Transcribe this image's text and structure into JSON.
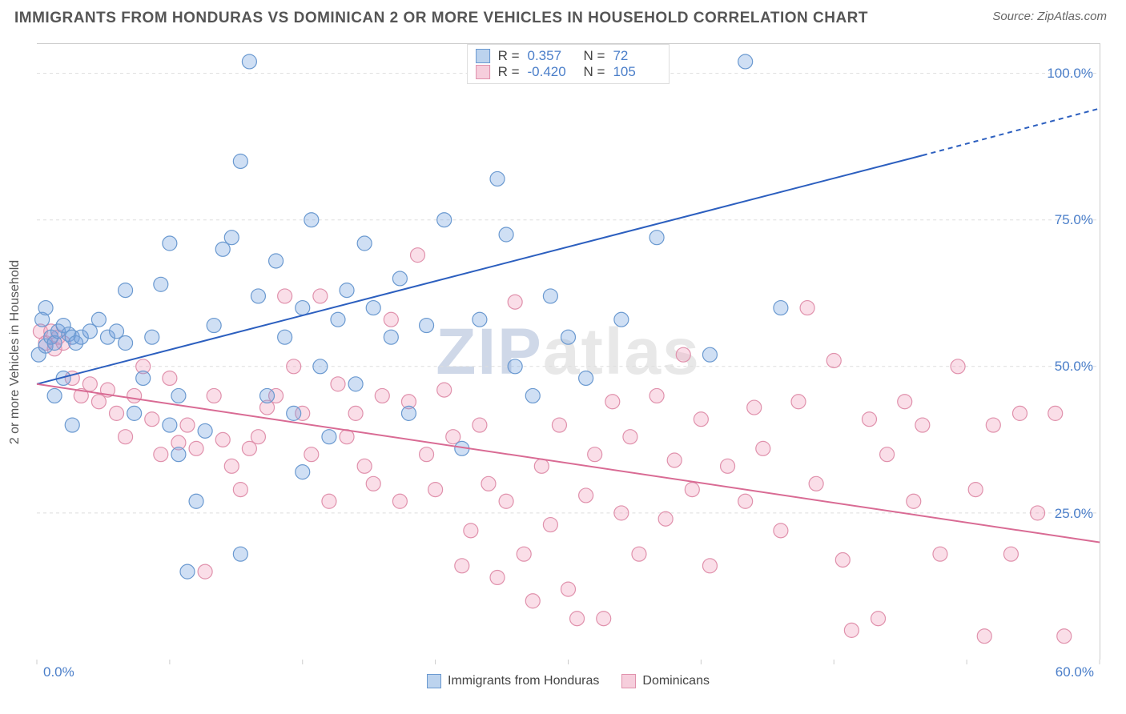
{
  "header": {
    "title": "IMMIGRANTS FROM HONDURAS VS DOMINICAN 2 OR MORE VEHICLES IN HOUSEHOLD CORRELATION CHART",
    "source_label": "Source: ",
    "source_value": "ZipAtlas.com"
  },
  "watermark": {
    "left": "ZIP",
    "right": "atlas"
  },
  "axes": {
    "y_title": "2 or more Vehicles in Household",
    "x_min_label": "0.0%",
    "x_max_label": "60.0%",
    "xlim": [
      0,
      60
    ],
    "ylim": [
      0,
      105
    ],
    "y_ticks": [
      25.0,
      50.0,
      75.0,
      100.0
    ],
    "y_tick_labels": [
      "25.0%",
      "50.0%",
      "75.0%",
      "100.0%"
    ],
    "x_tick_positions": [
      0,
      7.5,
      15,
      22.5,
      30,
      37.5,
      45,
      52.5,
      60
    ],
    "grid_color": "#dddddd",
    "label_color": "#4a7ec9",
    "axis_title_color": "#555555",
    "label_fontsize": 17
  },
  "series": {
    "a": {
      "name": "Immigrants from Honduras",
      "color_fill": "rgba(117,163,224,0.35)",
      "color_stroke": "#6a99d0",
      "swatch_fill": "#bcd3ee",
      "swatch_border": "#6a99d0",
      "marker": "circle",
      "marker_radius": 9,
      "R_label": "R =",
      "R_value": "0.357",
      "N_label": "N =",
      "N_value": "72",
      "regression": {
        "x1": 0,
        "y1": 47,
        "x2": 50,
        "y2": 86,
        "dashed_to_x": 60,
        "dashed_to_y": 94,
        "stroke": "#2c5fbf",
        "width": 2
      },
      "points": [
        [
          0.1,
          52
        ],
        [
          0.3,
          58
        ],
        [
          0.5,
          53.5
        ],
        [
          0.8,
          55
        ],
        [
          1,
          54
        ],
        [
          1.2,
          56
        ],
        [
          1.5,
          57
        ],
        [
          1.8,
          55.5
        ],
        [
          2,
          55
        ],
        [
          2.2,
          54
        ],
        [
          0.5,
          60
        ],
        [
          1,
          45
        ],
        [
          1.5,
          48
        ],
        [
          2,
          40
        ],
        [
          2.5,
          55
        ],
        [
          3,
          56
        ],
        [
          3.5,
          58
        ],
        [
          4,
          55
        ],
        [
          4.5,
          56
        ],
        [
          5,
          54
        ],
        [
          5,
          63
        ],
        [
          5.5,
          42
        ],
        [
          6,
          48
        ],
        [
          6.5,
          55
        ],
        [
          7,
          64
        ],
        [
          7.5,
          71
        ],
        [
          7.5,
          40
        ],
        [
          8,
          45
        ],
        [
          8,
          35
        ],
        [
          8.5,
          15
        ],
        [
          9,
          27
        ],
        [
          9.5,
          39
        ],
        [
          10,
          57
        ],
        [
          10.5,
          70
        ],
        [
          11,
          72
        ],
        [
          11.5,
          85
        ],
        [
          11.5,
          18
        ],
        [
          12,
          102
        ],
        [
          12.5,
          62
        ],
        [
          13,
          45
        ],
        [
          13.5,
          68
        ],
        [
          14,
          55
        ],
        [
          14.5,
          42
        ],
        [
          15,
          60
        ],
        [
          15,
          32
        ],
        [
          15.5,
          75
        ],
        [
          16,
          50
        ],
        [
          16.5,
          38
        ],
        [
          17,
          58
        ],
        [
          17.5,
          63
        ],
        [
          18,
          47
        ],
        [
          18.5,
          71
        ],
        [
          19,
          60
        ],
        [
          20,
          55
        ],
        [
          20.5,
          65
        ],
        [
          21,
          42
        ],
        [
          22,
          57
        ],
        [
          23,
          75
        ],
        [
          24,
          36
        ],
        [
          25,
          58
        ],
        [
          26,
          82
        ],
        [
          26.5,
          72.5
        ],
        [
          27,
          50
        ],
        [
          28,
          45
        ],
        [
          29,
          62
        ],
        [
          30,
          55
        ],
        [
          31,
          48
        ],
        [
          33,
          58
        ],
        [
          35,
          72
        ],
        [
          38,
          52
        ],
        [
          40,
          102
        ],
        [
          42,
          60
        ]
      ]
    },
    "b": {
      "name": "Dominicans",
      "color_fill": "rgba(240,160,190,0.35)",
      "color_stroke": "#e091ac",
      "swatch_fill": "#f6cedc",
      "swatch_border": "#e091ac",
      "marker": "circle",
      "marker_radius": 9,
      "R_label": "R =",
      "R_value": "-0.420",
      "N_label": "N =",
      "N_value": "105",
      "regression": {
        "x1": 0,
        "y1": 47,
        "x2": 60,
        "y2": 20,
        "stroke": "#d96b94",
        "width": 2
      },
      "points": [
        [
          0.2,
          56
        ],
        [
          0.5,
          54
        ],
        [
          0.8,
          56
        ],
        [
          1,
          53
        ],
        [
          1.2,
          55
        ],
        [
          1.5,
          54
        ],
        [
          2,
          48
        ],
        [
          2.5,
          45
        ],
        [
          3,
          47
        ],
        [
          3.5,
          44
        ],
        [
          4,
          46
        ],
        [
          4.5,
          42
        ],
        [
          5,
          38
        ],
        [
          5.5,
          45
        ],
        [
          6,
          50
        ],
        [
          6.5,
          41
        ],
        [
          7,
          35
        ],
        [
          7.5,
          48
        ],
        [
          8,
          37
        ],
        [
          8.5,
          40
        ],
        [
          9,
          36
        ],
        [
          9.5,
          15
        ],
        [
          10,
          45
        ],
        [
          10.5,
          37.5
        ],
        [
          11,
          33
        ],
        [
          11.5,
          29
        ],
        [
          12,
          36
        ],
        [
          12.5,
          38
        ],
        [
          13,
          43
        ],
        [
          13.5,
          45
        ],
        [
          14,
          62
        ],
        [
          14.5,
          50
        ],
        [
          15,
          42
        ],
        [
          15.5,
          35
        ],
        [
          16,
          62
        ],
        [
          16.5,
          27
        ],
        [
          17,
          47
        ],
        [
          17.5,
          38
        ],
        [
          18,
          42
        ],
        [
          18.5,
          33
        ],
        [
          19,
          30
        ],
        [
          19.5,
          45
        ],
        [
          20,
          58
        ],
        [
          20.5,
          27
        ],
        [
          21,
          44
        ],
        [
          21.5,
          69
        ],
        [
          22,
          35
        ],
        [
          22.5,
          29
        ],
        [
          23,
          46
        ],
        [
          23.5,
          38
        ],
        [
          24,
          16
        ],
        [
          24.5,
          22
        ],
        [
          25,
          40
        ],
        [
          25.5,
          30
        ],
        [
          26,
          14
        ],
        [
          26.5,
          27
        ],
        [
          27,
          61
        ],
        [
          27.5,
          18
        ],
        [
          28,
          10
        ],
        [
          28.5,
          33
        ],
        [
          29,
          23
        ],
        [
          29.5,
          40
        ],
        [
          30,
          12
        ],
        [
          30.5,
          7
        ],
        [
          31,
          28
        ],
        [
          31.5,
          35
        ],
        [
          32,
          7
        ],
        [
          32.5,
          44
        ],
        [
          33,
          25
        ],
        [
          33.5,
          38
        ],
        [
          34,
          18
        ],
        [
          35,
          45
        ],
        [
          35.5,
          24
        ],
        [
          36,
          34
        ],
        [
          36.5,
          52
        ],
        [
          37,
          29
        ],
        [
          37.5,
          41
        ],
        [
          38,
          16
        ],
        [
          39,
          33
        ],
        [
          40,
          27
        ],
        [
          40.5,
          43
        ],
        [
          41,
          36
        ],
        [
          42,
          22
        ],
        [
          43,
          44
        ],
        [
          43.5,
          60
        ],
        [
          44,
          30
        ],
        [
          45,
          51
        ],
        [
          45.5,
          17
        ],
        [
          46,
          5
        ],
        [
          47,
          41
        ],
        [
          47.5,
          7
        ],
        [
          48,
          35
        ],
        [
          49,
          44
        ],
        [
          49.5,
          27
        ],
        [
          50,
          40
        ],
        [
          51,
          18
        ],
        [
          52,
          50
        ],
        [
          53,
          29
        ],
        [
          53.5,
          4
        ],
        [
          54,
          40
        ],
        [
          55,
          18
        ],
        [
          55.5,
          42
        ],
        [
          56.5,
          25
        ],
        [
          57.5,
          42
        ],
        [
          58,
          4
        ]
      ]
    }
  },
  "legend_bottom": {
    "items": [
      {
        "swatch_fill": "#bcd3ee",
        "swatch_border": "#6a99d0",
        "label": "Immigrants from Honduras"
      },
      {
        "swatch_fill": "#f6cedc",
        "swatch_border": "#e091ac",
        "label": "Dominicans"
      }
    ]
  }
}
